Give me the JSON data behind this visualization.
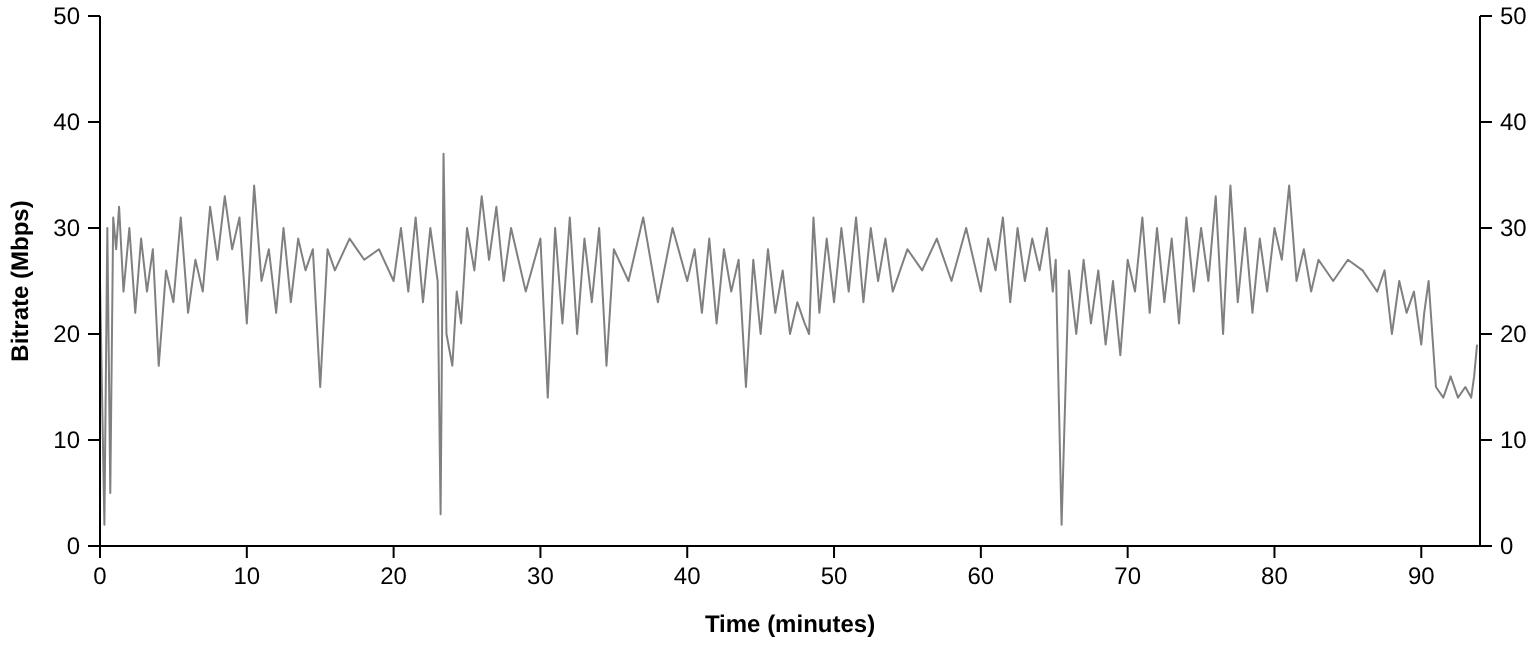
{
  "chart_data": {
    "type": "line",
    "xlabel": "Time (minutes)",
    "ylabel": "Bitrate (Mbps)",
    "xlim": [
      0,
      94
    ],
    "ylim": [
      0,
      50
    ],
    "xticks": [
      0,
      10,
      20,
      30,
      40,
      50,
      60,
      70,
      80,
      90
    ],
    "yticks": [
      0,
      10,
      20,
      30,
      40,
      50
    ],
    "y2lim": [
      0,
      50
    ],
    "y2ticks": [
      0,
      10,
      20,
      30,
      40,
      50
    ],
    "grid": false,
    "line_style": "solid",
    "marker": "none",
    "series": [
      {
        "color": "#808080",
        "x": [
          0,
          0.3,
          0.5,
          0.7,
          0.9,
          1.1,
          1.3,
          1.6,
          2,
          2.4,
          2.8,
          3.2,
          3.6,
          4,
          4.5,
          5,
          5.5,
          6,
          6.5,
          7,
          7.5,
          8,
          8.5,
          9,
          9.5,
          10,
          10.5,
          11,
          11.5,
          12,
          12.5,
          13,
          13.5,
          14,
          14.5,
          15,
          15.5,
          16,
          17,
          18,
          19,
          20,
          20.5,
          21,
          21.5,
          22,
          22.5,
          23,
          23.2,
          23.4,
          23.6,
          24,
          24.3,
          24.6,
          25,
          25.5,
          26,
          26.5,
          27,
          27.5,
          28,
          29,
          30,
          30.5,
          31,
          31.5,
          32,
          32.5,
          33,
          33.5,
          34,
          34.5,
          35,
          36,
          37,
          38,
          39,
          40,
          40.5,
          41,
          41.5,
          42,
          42.5,
          43,
          43.5,
          44,
          44.5,
          45,
          45.5,
          46,
          46.5,
          47,
          47.5,
          48,
          48.3,
          48.6,
          49,
          49.5,
          50,
          50.5,
          51,
          51.5,
          52,
          52.5,
          53,
          53.5,
          54,
          55,
          56,
          57,
          58,
          59,
          60,
          60.5,
          61,
          61.5,
          62,
          62.5,
          63,
          63.5,
          64,
          64.5,
          64.9,
          65.1,
          65.5,
          66,
          66.5,
          67,
          67.5,
          68,
          68.5,
          69,
          69.5,
          70,
          70.5,
          71,
          71.5,
          72,
          72.5,
          73,
          73.5,
          74,
          74.5,
          75,
          75.5,
          76,
          76.5,
          77,
          77.5,
          78,
          78.5,
          79,
          79.5,
          80,
          80.5,
          81,
          81.5,
          82,
          82.5,
          83,
          84,
          85,
          86,
          86.5,
          87,
          87.5,
          88,
          88.5,
          89,
          89.5,
          90,
          90.2,
          90.5,
          91,
          91.5,
          92,
          92.5,
          93,
          93.4,
          93.6,
          93.8
        ],
        "values": [
          25,
          2,
          30,
          5,
          31,
          28,
          32,
          24,
          30,
          22,
          29,
          24,
          28,
          17,
          26,
          23,
          31,
          22,
          27,
          24,
          32,
          27,
          33,
          28,
          31,
          21,
          34,
          25,
          28,
          22,
          30,
          23,
          29,
          26,
          28,
          15,
          28,
          26,
          29,
          27,
          28,
          25,
          30,
          24,
          31,
          23,
          30,
          25,
          3,
          37,
          20,
          17,
          24,
          21,
          30,
          26,
          33,
          27,
          32,
          25,
          30,
          24,
          29,
          14,
          30,
          21,
          31,
          20,
          29,
          23,
          30,
          17,
          28,
          25,
          31,
          23,
          30,
          25,
          28,
          22,
          29,
          21,
          28,
          24,
          27,
          15,
          27,
          20,
          28,
          22,
          26,
          20,
          23,
          21,
          20,
          31,
          22,
          29,
          23,
          30,
          24,
          31,
          23,
          30,
          25,
          29,
          24,
          28,
          26,
          29,
          25,
          30,
          24,
          29,
          26,
          31,
          23,
          30,
          25,
          29,
          26,
          30,
          24,
          27,
          2,
          26,
          20,
          27,
          21,
          26,
          19,
          25,
          18,
          27,
          24,
          31,
          22,
          30,
          23,
          29,
          21,
          31,
          24,
          30,
          25,
          33,
          20,
          34,
          23,
          30,
          22,
          29,
          24,
          30,
          27,
          34,
          25,
          28,
          24,
          27,
          25,
          27,
          26,
          25,
          24,
          26,
          20,
          25,
          22,
          24,
          19,
          22,
          25,
          15,
          14,
          16,
          14,
          15,
          14,
          16,
          19
        ]
      }
    ]
  }
}
